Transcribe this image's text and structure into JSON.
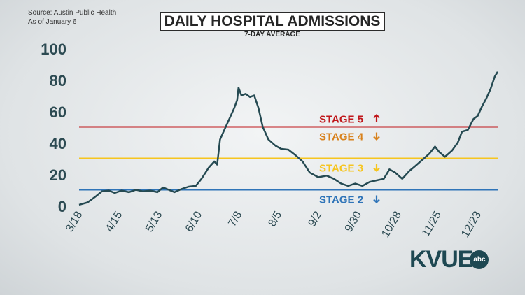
{
  "header": {
    "source": "Source: Austin Public Health",
    "as_of": "As of January 6",
    "title": "DAILY HOSPITAL ADMISSIONS",
    "subtitle": "7-DAY AVERAGE"
  },
  "logo": {
    "text": "KVUE",
    "badge": "abc"
  },
  "chart_data": {
    "type": "line",
    "title": "DAILY HOSPITAL ADMISSIONS",
    "subtitle": "7-DAY AVERAGE",
    "xlabel": "",
    "ylabel": "",
    "ylim": [
      0,
      100
    ],
    "y_ticks": [
      0,
      20,
      40,
      60,
      80,
      100
    ],
    "x_tick_labels": [
      "3/18",
      "4/15",
      "5/13",
      "6/10",
      "7/8",
      "8/5",
      "9/2",
      "9/30",
      "10/28",
      "11/25",
      "12/23"
    ],
    "x_start": "2020-03-18",
    "x_end": "2021-01-06",
    "grid": false,
    "line_color": "#254a52",
    "series": [
      {
        "values": [
          [
            "2020-03-18",
            0.5
          ],
          [
            "2020-03-24",
            2
          ],
          [
            "2020-03-30",
            6
          ],
          [
            "2020-04-03",
            9
          ],
          [
            "2020-04-08",
            9.5
          ],
          [
            "2020-04-12",
            8
          ],
          [
            "2020-04-17",
            9.5
          ],
          [
            "2020-04-22",
            8.5
          ],
          [
            "2020-04-27",
            10
          ],
          [
            "2020-05-02",
            9
          ],
          [
            "2020-05-07",
            9.5
          ],
          [
            "2020-05-12",
            8.5
          ],
          [
            "2020-05-16",
            11.5
          ],
          [
            "2020-05-20",
            10
          ],
          [
            "2020-05-24",
            8.5
          ],
          [
            "2020-05-29",
            10.5
          ],
          [
            "2020-06-03",
            12
          ],
          [
            "2020-06-08",
            12.5
          ],
          [
            "2020-06-12",
            17
          ],
          [
            "2020-06-17",
            24
          ],
          [
            "2020-06-21",
            28
          ],
          [
            "2020-06-23",
            26
          ],
          [
            "2020-06-25",
            42
          ],
          [
            "2020-06-29",
            50
          ],
          [
            "2020-07-02",
            56
          ],
          [
            "2020-07-05",
            62
          ],
          [
            "2020-07-07",
            67
          ],
          [
            "2020-07-08",
            75
          ],
          [
            "2020-07-10",
            70
          ],
          [
            "2020-07-13",
            71
          ],
          [
            "2020-07-16",
            69
          ],
          [
            "2020-07-19",
            70
          ],
          [
            "2020-07-22",
            62
          ],
          [
            "2020-07-25",
            50
          ],
          [
            "2020-07-29",
            42
          ],
          [
            "2020-08-03",
            38
          ],
          [
            "2020-08-07",
            36
          ],
          [
            "2020-08-12",
            35.5
          ],
          [
            "2020-08-17",
            32
          ],
          [
            "2020-08-22",
            28
          ],
          [
            "2020-08-27",
            21
          ],
          [
            "2020-09-02",
            18
          ],
          [
            "2020-09-08",
            19
          ],
          [
            "2020-09-13",
            17
          ],
          [
            "2020-09-18",
            14
          ],
          [
            "2020-09-23",
            12.5
          ],
          [
            "2020-09-28",
            14
          ],
          [
            "2020-10-03",
            12.5
          ],
          [
            "2020-10-08",
            15
          ],
          [
            "2020-10-13",
            16
          ],
          [
            "2020-10-18",
            17
          ],
          [
            "2020-10-22",
            23
          ],
          [
            "2020-10-26",
            21
          ],
          [
            "2020-10-31",
            17
          ],
          [
            "2020-11-05",
            22
          ],
          [
            "2020-11-09",
            25
          ],
          [
            "2020-11-14",
            29
          ],
          [
            "2020-11-19",
            33
          ],
          [
            "2020-11-23",
            37.5
          ],
          [
            "2020-11-26",
            34
          ],
          [
            "2020-11-30",
            31
          ],
          [
            "2020-12-05",
            35
          ],
          [
            "2020-12-09",
            40
          ],
          [
            "2020-12-12",
            47
          ],
          [
            "2020-12-16",
            48
          ],
          [
            "2020-12-20",
            55
          ],
          [
            "2020-12-23",
            57
          ],
          [
            "2020-12-26",
            63
          ],
          [
            "2020-12-29",
            68
          ],
          [
            "2021-01-01",
            74
          ],
          [
            "2021-01-04",
            82
          ],
          [
            "2021-01-06",
            85
          ]
        ]
      }
    ],
    "thresholds": [
      {
        "label": "STAGE 5",
        "value": 50,
        "color": "#c0171b",
        "arrow": "up",
        "label_position": "above"
      },
      {
        "label": "STAGE 4",
        "value": 50,
        "color": "#d8811b",
        "arrow": "down",
        "label_position": "below"
      },
      {
        "label": "STAGE 3",
        "value": 30,
        "color": "#f6c51f",
        "arrow": "down",
        "label_position": "below"
      },
      {
        "label": "STAGE 2",
        "value": 10,
        "color": "#2f74b8",
        "arrow": "down",
        "label_position": "below"
      }
    ]
  }
}
